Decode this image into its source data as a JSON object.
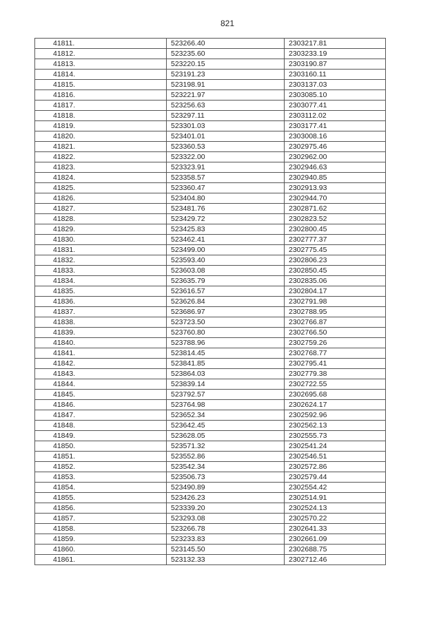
{
  "page_number": "821",
  "rows": [
    [
      "41811.",
      "523266.40",
      "2303217.81"
    ],
    [
      "41812.",
      "523235.60",
      "2303233.19"
    ],
    [
      "41813.",
      "523220.15",
      "2303190.87"
    ],
    [
      "41814.",
      "523191.23",
      "2303160.11"
    ],
    [
      "41815.",
      "523198.91",
      "2303137.03"
    ],
    [
      "41816.",
      "523221.97",
      "2303085.10"
    ],
    [
      "41817.",
      "523256.63",
      "2303077.41"
    ],
    [
      "41818.",
      "523297.11",
      "2303112.02"
    ],
    [
      "41819.",
      "523301.03",
      "2303177.41"
    ],
    [
      "41820.",
      "523401.01",
      "2303008.16"
    ],
    [
      "41821.",
      "523360.53",
      "2302975.46"
    ],
    [
      "41822.",
      "523322.00",
      "2302962.00"
    ],
    [
      "41823.",
      "523323.91",
      "2302946.63"
    ],
    [
      "41824.",
      "523358.57",
      "2302940.85"
    ],
    [
      "41825.",
      "523360.47",
      "2302913.93"
    ],
    [
      "41826.",
      "523404.80",
      "2302944.70"
    ],
    [
      "41827.",
      "523481.76",
      "2302871.62"
    ],
    [
      "41828.",
      "523429.72",
      "2302823.52"
    ],
    [
      "41829.",
      "523425.83",
      "2302800.45"
    ],
    [
      "41830.",
      "523462.41",
      "2302777.37"
    ],
    [
      "41831.",
      "523499.00",
      "2302775.45"
    ],
    [
      "41832.",
      "523593.40",
      "2302806.23"
    ],
    [
      "41833.",
      "523603.08",
      "2302850.45"
    ],
    [
      "41834.",
      "523635.79",
      "2302835.06"
    ],
    [
      "41835.",
      "523616.57",
      "2302804.17"
    ],
    [
      "41836.",
      "523626.84",
      "2302791.98"
    ],
    [
      "41837.",
      "523686.97",
      "2302788.95"
    ],
    [
      "41838.",
      "523723.50",
      "2302766.87"
    ],
    [
      "41839.",
      "523760.80",
      "2302766.50"
    ],
    [
      "41840.",
      "523788.96",
      "2302759.26"
    ],
    [
      "41841.",
      "523814.45",
      "2302768.77"
    ],
    [
      "41842.",
      "523841.85",
      "2302795.41"
    ],
    [
      "41843.",
      "523864.03",
      "2302779.38"
    ],
    [
      "41844.",
      "523839.14",
      "2302722.55"
    ],
    [
      "41845.",
      "523792.57",
      "2302695.68"
    ],
    [
      "41846.",
      "523764.98",
      "2302624.17"
    ],
    [
      "41847.",
      "523652.34",
      "2302592.96"
    ],
    [
      "41848.",
      "523642.45",
      "2302562.13"
    ],
    [
      "41849.",
      "523628.05",
      "2302555.73"
    ],
    [
      "41850.",
      "523571.32",
      "2302541.24"
    ],
    [
      "41851.",
      "523552.86",
      "2302546.51"
    ],
    [
      "41852.",
      "523542.34",
      "2302572.86"
    ],
    [
      "41853.",
      "523506.73",
      "2302579.44"
    ],
    [
      "41854.",
      "523490.89",
      "2302554.42"
    ],
    [
      "41855.",
      "523426.23",
      "2302514.91"
    ],
    [
      "41856.",
      "523339.20",
      "2302524.13"
    ],
    [
      "41857.",
      "523293.08",
      "2302570.22"
    ],
    [
      "41858.",
      "523266.78",
      "2302641.33"
    ],
    [
      "41859.",
      "523233.83",
      "2302661.09"
    ],
    [
      "41860.",
      "523145.50",
      "2302688.75"
    ],
    [
      "41861.",
      "523132.33",
      "2302712.46"
    ]
  ]
}
